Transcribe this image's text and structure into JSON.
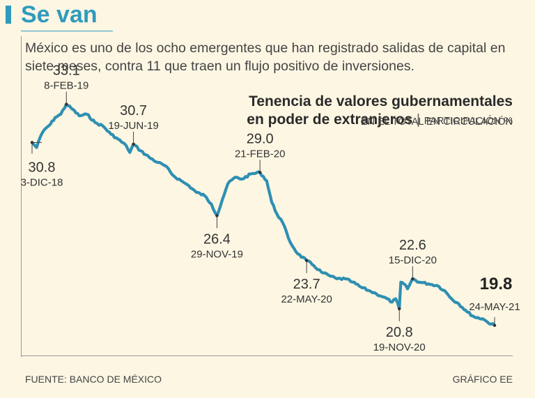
{
  "colors": {
    "accent": "#2f9bbd",
    "series": "#2f8fb2",
    "text": "#333333"
  },
  "header": {
    "title": "Se van",
    "subtitle": "México es uno de los ocho emergentes que han registrado salidas de capital en siete meses, contra 11 que traen un flujo positivo de inversiones."
  },
  "footer": {
    "source": "FUENTE: BANCO DE MÉXICO",
    "credit": "GRÁFICO EE"
  },
  "chart_data": {
    "type": "line",
    "title": "Tenencia de valores gubernamentales en poder de extranjeros",
    "title_line1": "Tenencia de valores gubernamentales",
    "title_line2": "en poder de extranjeros",
    "unit_line1": "PARTICIPACIÓN %",
    "unit_line2": "EN EL TOTAL EN CIRCULACIÓN",
    "separator": "|",
    "xlabel": "",
    "ylabel": "",
    "ylim": [
      19.5,
      33.5
    ],
    "x_range": [
      "2018-12-03",
      "2021-05-24"
    ],
    "series": [
      {
        "name": "Participación %",
        "points": [
          [
            "2018-12-03",
            30.8
          ],
          [
            "2018-12-12",
            30.5
          ],
          [
            "2018-12-20",
            31.2
          ],
          [
            "2018-12-28",
            31.6
          ],
          [
            "2019-01-08",
            31.9
          ],
          [
            "2019-01-17",
            32.3
          ],
          [
            "2019-01-28",
            32.5
          ],
          [
            "2019-02-08",
            33.1
          ],
          [
            "2019-02-20",
            32.8
          ],
          [
            "2019-03-05",
            32.4
          ],
          [
            "2019-03-20",
            32.5
          ],
          [
            "2019-04-05",
            32.0
          ],
          [
            "2019-04-20",
            31.8
          ],
          [
            "2019-05-06",
            31.3
          ],
          [
            "2019-05-20",
            31.0
          ],
          [
            "2019-06-05",
            30.6
          ],
          [
            "2019-06-12",
            30.2
          ],
          [
            "2019-06-19",
            30.7
          ],
          [
            "2019-07-03",
            30.3
          ],
          [
            "2019-07-20",
            29.9
          ],
          [
            "2019-08-05",
            29.6
          ],
          [
            "2019-08-20",
            29.4
          ],
          [
            "2019-09-05",
            28.8
          ],
          [
            "2019-09-20",
            28.5
          ],
          [
            "2019-10-05",
            28.2
          ],
          [
            "2019-10-20",
            27.8
          ],
          [
            "2019-11-05",
            27.6
          ],
          [
            "2019-11-18",
            27.1
          ],
          [
            "2019-11-29",
            26.4
          ],
          [
            "2019-12-10",
            27.4
          ],
          [
            "2019-12-20",
            28.3
          ],
          [
            "2020-01-03",
            28.7
          ],
          [
            "2020-01-17",
            28.6
          ],
          [
            "2020-02-03",
            28.9
          ],
          [
            "2020-02-21",
            29.0
          ],
          [
            "2020-03-05",
            28.5
          ],
          [
            "2020-03-15",
            27.2
          ],
          [
            "2020-03-25",
            26.5
          ],
          [
            "2020-04-05",
            26.0
          ],
          [
            "2020-04-20",
            24.8
          ],
          [
            "2020-05-05",
            24.1
          ],
          [
            "2020-05-22",
            23.7
          ],
          [
            "2020-06-05",
            23.4
          ],
          [
            "2020-06-20",
            23.0
          ],
          [
            "2020-07-05",
            22.8
          ],
          [
            "2020-07-20",
            22.6
          ],
          [
            "2020-08-05",
            22.6
          ],
          [
            "2020-08-20",
            22.4
          ],
          [
            "2020-09-05",
            22.1
          ],
          [
            "2020-09-20",
            21.9
          ],
          [
            "2020-10-05",
            21.7
          ],
          [
            "2020-10-20",
            21.5
          ],
          [
            "2020-11-05",
            21.2
          ],
          [
            "2020-11-12",
            21.4
          ],
          [
            "2020-11-19",
            20.8
          ],
          [
            "2020-11-22",
            22.4
          ],
          [
            "2020-11-28",
            22.3
          ],
          [
            "2020-12-05",
            22.0
          ],
          [
            "2020-12-15",
            22.6
          ],
          [
            "2020-12-28",
            22.4
          ],
          [
            "2021-01-15",
            22.3
          ],
          [
            "2021-02-01",
            22.2
          ],
          [
            "2021-02-15",
            21.9
          ],
          [
            "2021-03-01",
            21.4
          ],
          [
            "2021-03-15",
            21.1
          ],
          [
            "2021-04-01",
            20.6
          ],
          [
            "2021-04-15",
            20.3
          ],
          [
            "2021-05-01",
            20.2
          ],
          [
            "2021-05-10",
            20.0
          ],
          [
            "2021-05-24",
            19.8
          ]
        ]
      }
    ],
    "annotations": [
      {
        "date": "2018-12-03",
        "value": 30.8,
        "value_label": "30.8",
        "date_label": "3-DIC-18",
        "position": "below-left"
      },
      {
        "date": "2019-02-08",
        "value": 33.1,
        "value_label": "33.1",
        "date_label": "8-FEB-19",
        "position": "above"
      },
      {
        "date": "2019-06-19",
        "value": 30.7,
        "value_label": "30.7",
        "date_label": "19-JUN-19",
        "position": "above"
      },
      {
        "date": "2019-11-29",
        "value": 26.4,
        "value_label": "26.4",
        "date_label": "29-NOV-19",
        "position": "below"
      },
      {
        "date": "2020-02-21",
        "value": 29.0,
        "value_label": "29.0",
        "date_label": "21-FEB-20",
        "position": "above"
      },
      {
        "date": "2020-05-22",
        "value": 23.7,
        "value_label": "23.7",
        "date_label": "22-MAY-20",
        "position": "below"
      },
      {
        "date": "2020-11-19",
        "value": 20.8,
        "value_label": "20.8",
        "date_label": "19-NOV-20",
        "position": "below"
      },
      {
        "date": "2020-12-15",
        "value": 22.6,
        "value_label": "22.6",
        "date_label": "15-DIC-20",
        "position": "above"
      },
      {
        "date": "2021-05-24",
        "value": 19.8,
        "value_label": "19.8",
        "date_label": "24-MAY-21",
        "position": "above-final"
      }
    ]
  }
}
